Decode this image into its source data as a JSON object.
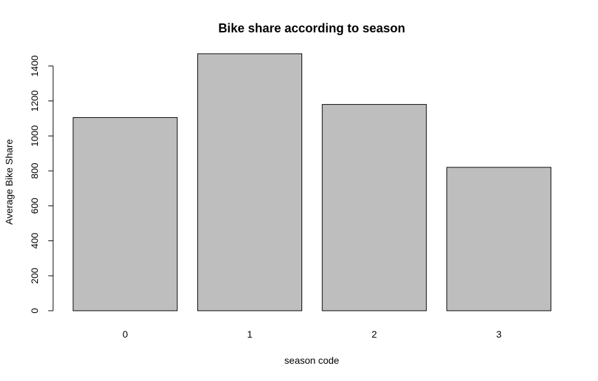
{
  "chart_data": {
    "type": "bar",
    "title": "Bike share according to season",
    "xlabel": "season code",
    "ylabel": "Average Bike Share",
    "categories": [
      "0",
      "1",
      "2",
      "3"
    ],
    "values": [
      1105,
      1470,
      1180,
      820
    ],
    "ylim": [
      0,
      1470
    ],
    "yticks": [
      0,
      200,
      400,
      600,
      800,
      1000,
      1200,
      1400
    ],
    "grid": false,
    "colors": {
      "bar_fill": "#bebebe",
      "bar_stroke": "#000000"
    }
  }
}
